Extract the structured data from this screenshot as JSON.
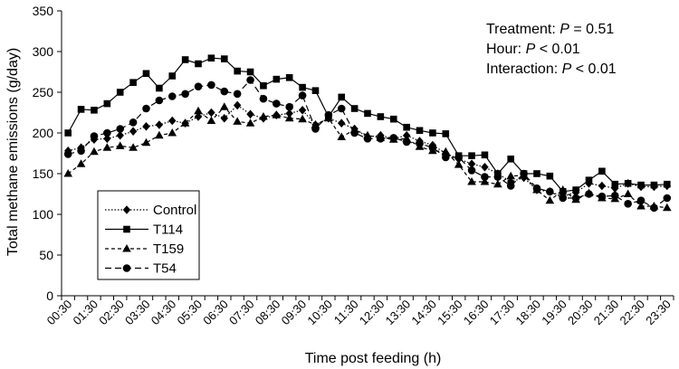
{
  "chart_data": {
    "type": "line",
    "title": "",
    "xlabel": "Time post feeding (h)",
    "ylabel": "Total methane emissions (g/day)",
    "ylim": [
      0,
      350
    ],
    "yticks": [
      0,
      50,
      100,
      150,
      200,
      250,
      300,
      350
    ],
    "x": [
      "00:30",
      "01:00",
      "01:30",
      "02:00",
      "02:30",
      "03:00",
      "03:30",
      "04:00",
      "04:30",
      "05:00",
      "05:30",
      "06:00",
      "06:30",
      "07:00",
      "07:30",
      "08:00",
      "08:30",
      "09:00",
      "09:30",
      "10:00",
      "10:30",
      "11:00",
      "11:30",
      "12:00",
      "12:30",
      "13:00",
      "13:30",
      "14:00",
      "14:30",
      "15:00",
      "15:30",
      "16:00",
      "16:30",
      "17:00",
      "17:30",
      "18:00",
      "18:30",
      "19:00",
      "19:30",
      "20:00",
      "20:30",
      "21:00",
      "21:30",
      "22:00",
      "22:30",
      "23:00",
      "23:30"
    ],
    "xtick_labels": [
      "00:30",
      "01:30",
      "02:30",
      "03:30",
      "04:30",
      "05:30",
      "06:30",
      "07:30",
      "08:30",
      "09:30",
      "10:30",
      "11:30",
      "12:30",
      "13:30",
      "14:30",
      "15:30",
      "16:30",
      "17:30",
      "18:30",
      "19:30",
      "20:30",
      "21:30",
      "22:30",
      "23:30"
    ],
    "series": [
      {
        "name": "Control",
        "marker": "diamond",
        "dash": "dotted",
        "values": [
          178,
          182,
          192,
          193,
          197,
          202,
          208,
          210,
          215,
          212,
          220,
          225,
          218,
          234,
          223,
          218,
          222,
          224,
          228,
          210,
          218,
          212,
          205,
          195,
          197,
          193,
          197,
          190,
          185,
          175,
          168,
          162,
          158,
          150,
          140,
          145,
          130,
          128,
          122,
          127,
          138,
          135,
          132,
          138,
          134,
          134,
          135
        ]
      },
      {
        "name": "T114",
        "marker": "square",
        "dash": "solid",
        "values": [
          200,
          229,
          228,
          236,
          250,
          262,
          273,
          255,
          270,
          290,
          285,
          292,
          291,
          276,
          275,
          258,
          266,
          268,
          256,
          252,
          220,
          244,
          230,
          224,
          220,
          217,
          207,
          203,
          200,
          199,
          172,
          172,
          173,
          150,
          168,
          150,
          150,
          147,
          128,
          130,
          142,
          153,
          137,
          138,
          136,
          136,
          137
        ]
      },
      {
        "name": "T159",
        "marker": "triangle",
        "dash": "dashed",
        "values": [
          150,
          162,
          177,
          182,
          184,
          182,
          188,
          197,
          200,
          212,
          227,
          215,
          232,
          214,
          212,
          220,
          222,
          218,
          217,
          210,
          218,
          195,
          204,
          197,
          194,
          192,
          193,
          183,
          178,
          177,
          161,
          140,
          140,
          137,
          147,
          148,
          130,
          117,
          130,
          118,
          126,
          120,
          119,
          125,
          110,
          110,
          108
        ]
      },
      {
        "name": "T54",
        "marker": "circle",
        "dash": "longdash",
        "values": [
          174,
          178,
          196,
          200,
          205,
          213,
          230,
          240,
          245,
          248,
          257,
          259,
          251,
          248,
          265,
          242,
          236,
          232,
          246,
          205,
          222,
          230,
          200,
          193,
          193,
          194,
          189,
          187,
          182,
          170,
          170,
          154,
          146,
          146,
          135,
          150,
          132,
          128,
          120,
          120,
          125,
          122,
          123,
          113,
          117,
          108,
          120
        ]
      }
    ],
    "annotations": {
      "lines": [
        {
          "label": "Treatment: ",
          "p_label": "P",
          "rel": " = ",
          "value": "0.51"
        },
        {
          "label": "Hour: ",
          "p_label": "P",
          "rel": " < ",
          "value": "0.01"
        },
        {
          "label": "Interaction: ",
          "p_label": "P",
          "rel": " < ",
          "value": "0.01"
        }
      ]
    },
    "legend_position": "lower-left",
    "grid": false
  }
}
